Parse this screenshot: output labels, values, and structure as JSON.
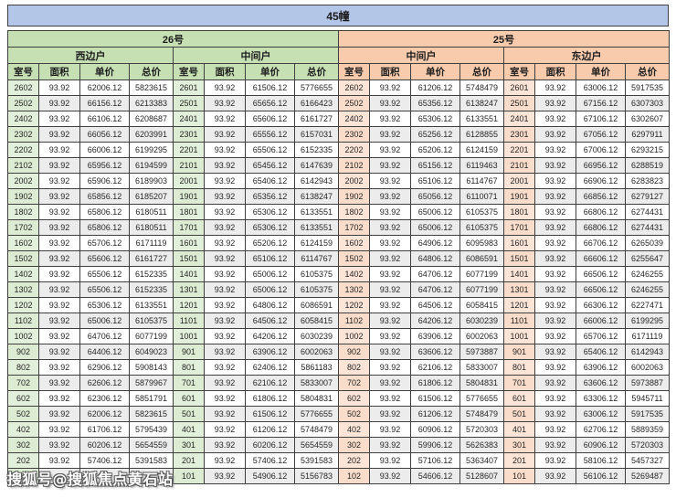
{
  "title": "45幢",
  "watermark": "搜狐号@搜狐焦点黄石站",
  "colors": {
    "title_bg": "#b4c6e7",
    "green_header": "#c6e0b4",
    "green_room_cell": "#e2efda",
    "orange_header": "#f8cbad",
    "orange_room_cell": "#fce4d6",
    "alt_row": "#ececec",
    "border": "#3f3f3f"
  },
  "table": {
    "buildings": [
      {
        "label": "26号",
        "theme": "green",
        "units": [
          "西边户",
          "中间户"
        ]
      },
      {
        "label": "25号",
        "theme": "orange",
        "units": [
          "中间户",
          "东边户"
        ]
      }
    ],
    "column_headers": [
      "室号",
      "面积",
      "单价",
      "总价"
    ],
    "rows": [
      [
        [
          "2602",
          "93.92",
          "62006.12",
          "5823615"
        ],
        [
          "2601",
          "93.92",
          "61506.12",
          "5776655"
        ],
        [
          "2602",
          "93.92",
          "61206.12",
          "5748479"
        ],
        [
          "2601",
          "93.92",
          "63006.12",
          "5917535"
        ]
      ],
      [
        [
          "2502",
          "93.92",
          "66156.12",
          "6213383"
        ],
        [
          "2501",
          "93.92",
          "65656.12",
          "6166423"
        ],
        [
          "2502",
          "93.92",
          "65356.12",
          "6138247"
        ],
        [
          "2501",
          "93.92",
          "67156.12",
          "6307303"
        ]
      ],
      [
        [
          "2402",
          "93.92",
          "66106.12",
          "6208687"
        ],
        [
          "2401",
          "93.92",
          "65606.12",
          "6161727"
        ],
        [
          "2402",
          "93.92",
          "65306.12",
          "6133551"
        ],
        [
          "2401",
          "93.92",
          "67106.12",
          "6302607"
        ]
      ],
      [
        [
          "2302",
          "93.92",
          "66056.12",
          "6203991"
        ],
        [
          "2301",
          "93.92",
          "65556.12",
          "6157031"
        ],
        [
          "2302",
          "93.92",
          "65256.12",
          "6128855"
        ],
        [
          "2301",
          "93.92",
          "67056.12",
          "6297911"
        ]
      ],
      [
        [
          "2202",
          "93.92",
          "66006.12",
          "6199295"
        ],
        [
          "2201",
          "93.92",
          "65506.12",
          "6152335"
        ],
        [
          "2202",
          "93.92",
          "65206.12",
          "6124159"
        ],
        [
          "2201",
          "93.92",
          "67006.12",
          "6293215"
        ]
      ],
      [
        [
          "2102",
          "93.92",
          "65956.12",
          "6194599"
        ],
        [
          "2101",
          "93.92",
          "65456.12",
          "6147639"
        ],
        [
          "2102",
          "93.92",
          "65156.12",
          "6119463"
        ],
        [
          "2101",
          "93.92",
          "66956.12",
          "6288519"
        ]
      ],
      [
        [
          "2002",
          "93.92",
          "65906.12",
          "6189903"
        ],
        [
          "2001",
          "93.92",
          "65406.12",
          "6142943"
        ],
        [
          "2002",
          "93.92",
          "65106.12",
          "6114767"
        ],
        [
          "2001",
          "93.92",
          "66906.12",
          "6283823"
        ]
      ],
      [
        [
          "1902",
          "93.92",
          "65856.12",
          "6185207"
        ],
        [
          "1901",
          "93.92",
          "65356.12",
          "6138247"
        ],
        [
          "1902",
          "93.92",
          "65056.12",
          "6110071"
        ],
        [
          "1901",
          "93.92",
          "66856.12",
          "6279127"
        ]
      ],
      [
        [
          "1802",
          "93.92",
          "65806.12",
          "6180511"
        ],
        [
          "1801",
          "93.92",
          "65306.12",
          "6133551"
        ],
        [
          "1802",
          "93.92",
          "65006.12",
          "6105375"
        ],
        [
          "1801",
          "93.92",
          "66806.12",
          "6274431"
        ]
      ],
      [
        [
          "1702",
          "93.92",
          "65806.12",
          "6180511"
        ],
        [
          "1701",
          "93.92",
          "65306.12",
          "6133551"
        ],
        [
          "1702",
          "93.92",
          "65006.12",
          "6105375"
        ],
        [
          "1701",
          "93.92",
          "66806.12",
          "6274431"
        ]
      ],
      [
        [
          "1602",
          "93.92",
          "65706.12",
          "6171119"
        ],
        [
          "1601",
          "93.92",
          "65206.12",
          "6124159"
        ],
        [
          "1602",
          "93.92",
          "64906.12",
          "6095983"
        ],
        [
          "1601",
          "93.92",
          "66706.12",
          "6265039"
        ]
      ],
      [
        [
          "1502",
          "93.92",
          "65606.12",
          "6161727"
        ],
        [
          "1501",
          "93.92",
          "65106.12",
          "6114767"
        ],
        [
          "1502",
          "93.92",
          "64806.12",
          "6086591"
        ],
        [
          "1501",
          "93.92",
          "66606.12",
          "6255647"
        ]
      ],
      [
        [
          "1402",
          "93.92",
          "65506.12",
          "6152335"
        ],
        [
          "1401",
          "93.92",
          "65006.12",
          "6105375"
        ],
        [
          "1402",
          "93.92",
          "64706.12",
          "6077199"
        ],
        [
          "1401",
          "93.92",
          "66506.12",
          "6246255"
        ]
      ],
      [
        [
          "1302",
          "93.92",
          "65506.12",
          "6152335"
        ],
        [
          "1301",
          "93.92",
          "65006.12",
          "6105375"
        ],
        [
          "1302",
          "93.92",
          "64706.12",
          "6077199"
        ],
        [
          "1301",
          "93.92",
          "66506.12",
          "6246255"
        ]
      ],
      [
        [
          "1202",
          "93.92",
          "65306.12",
          "6133551"
        ],
        [
          "1201",
          "93.92",
          "64806.12",
          "6086591"
        ],
        [
          "1202",
          "93.92",
          "64506.12",
          "6058415"
        ],
        [
          "1201",
          "93.92",
          "66306.12",
          "6227471"
        ]
      ],
      [
        [
          "1102",
          "93.92",
          "65006.12",
          "6105375"
        ],
        [
          "1101",
          "93.92",
          "64506.12",
          "6058415"
        ],
        [
          "1102",
          "93.92",
          "64206.12",
          "6030239"
        ],
        [
          "1101",
          "93.92",
          "66006.12",
          "6199295"
        ]
      ],
      [
        [
          "1002",
          "93.92",
          "64706.12",
          "6077199"
        ],
        [
          "1001",
          "93.92",
          "64206.12",
          "6030239"
        ],
        [
          "1002",
          "93.92",
          "63906.12",
          "6002063"
        ],
        [
          "1001",
          "93.92",
          "65706.12",
          "6171119"
        ]
      ],
      [
        [
          "902",
          "93.92",
          "64406.12",
          "6049023"
        ],
        [
          "901",
          "93.92",
          "63906.12",
          "6002063"
        ],
        [
          "902",
          "93.92",
          "63606.12",
          "5973887"
        ],
        [
          "901",
          "93.92",
          "65406.12",
          "6142943"
        ]
      ],
      [
        [
          "802",
          "93.92",
          "62906.12",
          "5908143"
        ],
        [
          "801",
          "93.92",
          "62406.12",
          "5861183"
        ],
        [
          "802",
          "93.92",
          "62106.12",
          "5833007"
        ],
        [
          "801",
          "93.92",
          "63906.12",
          "6002063"
        ]
      ],
      [
        [
          "702",
          "93.92",
          "62606.12",
          "5879967"
        ],
        [
          "701",
          "93.92",
          "62106.12",
          "5833007"
        ],
        [
          "702",
          "93.92",
          "61806.12",
          "5804831"
        ],
        [
          "701",
          "93.92",
          "63606.12",
          "5973887"
        ]
      ],
      [
        [
          "602",
          "93.92",
          "62306.12",
          "5851791"
        ],
        [
          "601",
          "93.92",
          "61806.12",
          "5804831"
        ],
        [
          "602",
          "93.92",
          "61506.12",
          "5776655"
        ],
        [
          "601",
          "93.92",
          "63306.12",
          "5945711"
        ]
      ],
      [
        [
          "502",
          "93.92",
          "62006.12",
          "5823615"
        ],
        [
          "501",
          "93.92",
          "61506.12",
          "5776655"
        ],
        [
          "502",
          "93.92",
          "61206.12",
          "5748479"
        ],
        [
          "501",
          "93.92",
          "63006.12",
          "5917535"
        ]
      ],
      [
        [
          "402",
          "93.92",
          "61706.12",
          "5795439"
        ],
        [
          "401",
          "93.92",
          "61206.12",
          "5748479"
        ],
        [
          "402",
          "93.92",
          "60906.12",
          "5720303"
        ],
        [
          "401",
          "93.92",
          "62706.12",
          "5889359"
        ]
      ],
      [
        [
          "302",
          "93.92",
          "60206.12",
          "5654559"
        ],
        [
          "301",
          "93.92",
          "60206.12",
          "5654559"
        ],
        [
          "302",
          "93.92",
          "59906.12",
          "5626383"
        ],
        [
          "301",
          "93.92",
          "60906.12",
          "5720303"
        ]
      ],
      [
        [
          "202",
          "93.92",
          "57406.12",
          "5391583"
        ],
        [
          "201",
          "93.92",
          "57406.12",
          "5391583"
        ],
        [
          "202",
          "93.92",
          "57106.12",
          "5363407"
        ],
        [
          "201",
          "93.92",
          "58106.12",
          "5457327"
        ]
      ],
      [
        [
          "",
          "",
          "",
          "743"
        ],
        [
          "101",
          "93.92",
          "54906.12",
          "5156783"
        ],
        [
          "102",
          "93.92",
          "54606.12",
          "5128607"
        ],
        [
          "101",
          "93.92",
          "56106.12",
          "5269487"
        ]
      ]
    ]
  }
}
